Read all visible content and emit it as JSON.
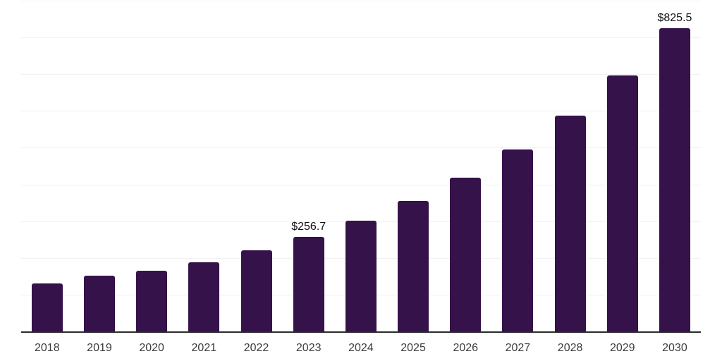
{
  "chart_data": {
    "type": "bar",
    "title": "",
    "xlabel": "",
    "ylabel": "",
    "categories": [
      "2018",
      "2019",
      "2020",
      "2021",
      "2022",
      "2023",
      "2024",
      "2025",
      "2026",
      "2027",
      "2028",
      "2029",
      "2030"
    ],
    "values": [
      130.2,
      151.3,
      166.0,
      188.5,
      219.9,
      256.7,
      301.4,
      354.4,
      419.2,
      494.8,
      587.1,
      696.2,
      825.5
    ],
    "point_labels": [
      "",
      "",
      "",
      "",
      "",
      "$256.7",
      "",
      "",
      "",
      "",
      "",
      "",
      "$825.5"
    ],
    "ylim": [
      0,
      900
    ],
    "gridline_step": 100,
    "grid": true,
    "legend": false,
    "colors": {
      "bar": "#35124A",
      "gridline": "#F1F1F1",
      "axis_line": "#2B2B2B",
      "tick_label": "#3C3C3C",
      "data_label": "#101010",
      "background": "#FFFFFF"
    }
  }
}
